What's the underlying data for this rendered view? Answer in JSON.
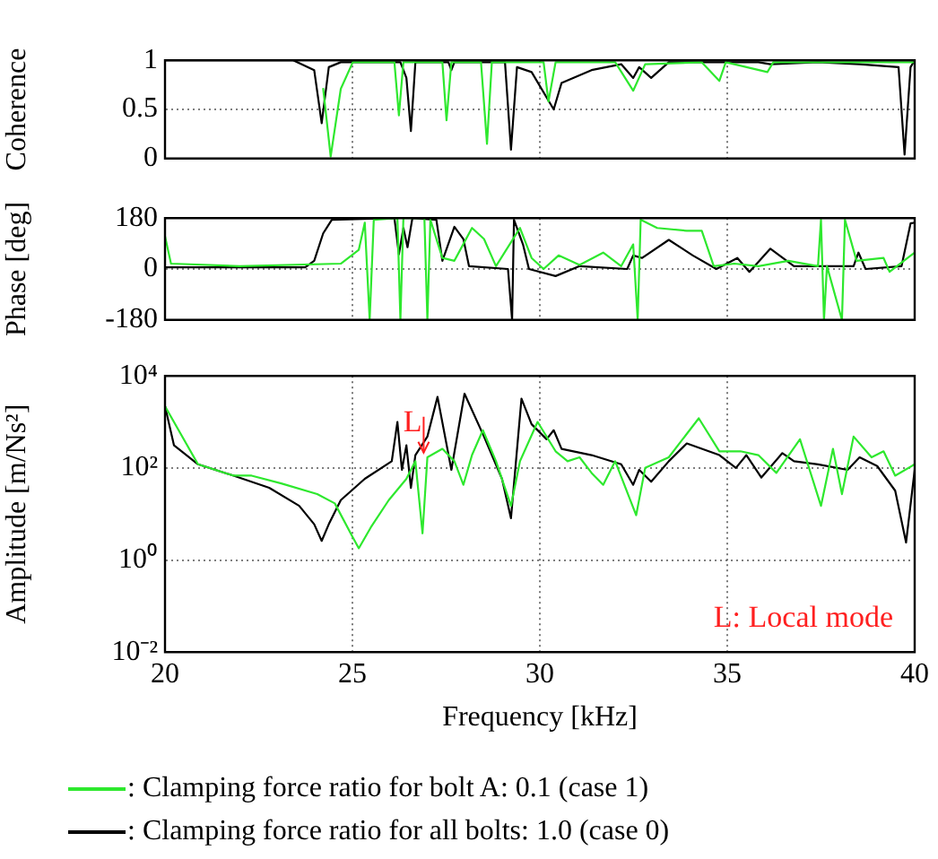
{
  "chart_data": [
    {
      "type": "line",
      "ylabel": "Coherence",
      "xlim": [
        20,
        40
      ],
      "xticks": [
        20,
        25,
        30,
        35,
        40
      ],
      "ylim": [
        0,
        1
      ],
      "yticks": [
        0,
        0.5,
        1
      ],
      "grid": true,
      "tick_labels": "y",
      "series": [
        {
          "color": "#2ee82e",
          "x": [
            24.22,
            24.42,
            24.69,
            25.01,
            26.12,
            26.24,
            26.36,
            27.4,
            27.51,
            27.64,
            28.43,
            28.59,
            28.72,
            30.1,
            30.23,
            30.42,
            32.01,
            32.49,
            32.81,
            34.32,
            34.79,
            34.96,
            36.07,
            36.23,
            39.97,
            40
          ],
          "values": [
            0.71,
            0.02,
            0.71,
            0.98,
            0.98,
            0.44,
            0.98,
            0.98,
            0.39,
            0.98,
            0.98,
            0.15,
            0.98,
            0.98,
            0.58,
            0.98,
            0.98,
            0.69,
            0.96,
            0.98,
            0.79,
            0.98,
            0.88,
            0.98,
            0.98,
            1
          ]
        },
        {
          "color": "#000000",
          "x": [
            20,
            23.42,
            23.98,
            24.18,
            24.37,
            24.69,
            26.28,
            26.44,
            26.56,
            26.68,
            27.56,
            27.64,
            27.72,
            29.07,
            29.23,
            29.39,
            29.78,
            30.37,
            30.58,
            31.38,
            32.17,
            32.49,
            32.65,
            32.97,
            33.44,
            35.83,
            36.15,
            37.42,
            38.53,
            39.57,
            39.73,
            39.89,
            40
          ],
          "values": [
            1,
            1,
            0.9,
            0.36,
            0.93,
            0.98,
            0.98,
            0.82,
            0.28,
            0.98,
            0.98,
            0.9,
            0.98,
            0.98,
            0.09,
            0.93,
            0.88,
            0.5,
            0.77,
            0.9,
            0.96,
            0.82,
            0.93,
            0.82,
            0.98,
            0.98,
            0.96,
            0.98,
            0.96,
            0.93,
            0.04,
            0.93,
            1
          ]
        }
      ]
    },
    {
      "type": "line",
      "ylabel": "Phase [deg]",
      "xlim": [
        20,
        40
      ],
      "xticks": [
        20,
        25,
        30,
        35,
        40
      ],
      "ylim": [
        -180,
        180
      ],
      "yticks": [
        -180,
        0,
        180
      ],
      "grid": true,
      "tick_labels": "y",
      "series": [
        {
          "color": "#2ee82e",
          "x": [
            20,
            20.16,
            21.99,
            24.69,
            25.17,
            25.33,
            25.46,
            25.57,
            26.2,
            26.28,
            26.36,
            26.92,
            27.0,
            27.08,
            27.4,
            27.72,
            28.19,
            28.51,
            28.83,
            29.47,
            29.78,
            30.1,
            30.5,
            31.06,
            31.69,
            32.17,
            32.49,
            32.61,
            32.69,
            33.13,
            33.92,
            34.32,
            34.64,
            35.19,
            35.83,
            36.63,
            37.42,
            37.5,
            37.58,
            37.66,
            38.06,
            38.14,
            38.45,
            39.17,
            39.33,
            40
          ],
          "values": [
            116,
            19,
            10,
            19,
            68,
            164,
            -180,
            174,
            180,
            -180,
            180,
            180,
            -180,
            174,
            39,
            29,
            145,
            106,
            10,
            145,
            39,
            0,
            48,
            14,
            58,
            10,
            87,
            -180,
            174,
            145,
            135,
            135,
            10,
            19,
            10,
            29,
            10,
            174,
            -180,
            10,
            -180,
            174,
            29,
            39,
            -10,
            58
          ]
        },
        {
          "color": "#000000",
          "x": [
            20,
            23.74,
            23.98,
            24.22,
            24.45,
            26.12,
            26.24,
            26.36,
            26.47,
            26.6,
            27.24,
            27.4,
            27.72,
            27.96,
            28.11,
            29.15,
            29.26,
            29.31,
            29.55,
            29.71,
            30.42,
            31.06,
            32.33,
            32.49,
            32.73,
            33.44,
            34.08,
            34.71,
            35.27,
            35.59,
            36.15,
            36.78,
            38.37,
            38.5,
            38.69,
            39.65,
            39.89,
            40
          ],
          "values": [
            6,
            6,
            29,
            126,
            174,
            180,
            52,
            145,
            77,
            180,
            174,
            29,
            149,
            106,
            10,
            0,
            -180,
            174,
            87,
            0,
            -25,
            10,
            0,
            48,
            39,
            103,
            48,
            0,
            39,
            -10,
            72,
            10,
            10,
            58,
            0,
            10,
            161,
            164
          ]
        }
      ]
    },
    {
      "type": "line",
      "xlabel": "Frequency [kHz]",
      "ylabel": "Amplitude [m/Ns²]",
      "log": "y",
      "xlim": [
        20,
        40
      ],
      "xticks": [
        20,
        25,
        30,
        35,
        40
      ],
      "ylim": [
        0.01,
        10000
      ],
      "yticks": [
        {
          "value": 0.01,
          "label": "10⁻²"
        },
        {
          "value": 1,
          "label": "10⁰"
        },
        {
          "value": 100,
          "label": "10²"
        },
        {
          "value": 10000,
          "label": "10⁴"
        }
      ],
      "grid": true,
      "legend": "bottom",
      "annotations": [
        {
          "text": "L",
          "x": 26.9,
          "y": 180
        },
        "L: Local mode"
      ],
      "series": [
        {
          "name": ": Clamping force ratio for bolt A: 0.1 (case 1)",
          "color": "#2ee82e",
          "x": [
            20,
            20.88,
            21.83,
            22.31,
            23.1,
            24.06,
            24.53,
            25.0,
            25.17,
            25.49,
            25.97,
            26.44,
            26.68,
            26.87,
            27.0,
            27.4,
            27.72,
            27.96,
            28.19,
            28.48,
            28.83,
            29.23,
            29.47,
            29.94,
            30.42,
            30.74,
            31.06,
            31.38,
            31.69,
            32.01,
            32.57,
            32.81,
            33.44,
            34.24,
            34.79,
            35.35,
            35.83,
            36.31,
            36.94,
            37.5,
            37.82,
            38.06,
            38.37,
            38.85,
            39.17,
            39.48,
            40
          ],
          "values": [
            2200,
            120,
            68,
            68,
            46,
            27,
            17,
            3.2,
            1.8,
            5.1,
            20,
            58,
            140,
            3.8,
            170,
            260,
            140,
            43,
            190,
            660,
            140,
            15,
            140,
            1000,
            230,
            140,
            170,
            78,
            43,
            140,
            9.4,
            100,
            170,
            1200,
            230,
            230,
            190,
            78,
            420,
            15,
            260,
            27,
            480,
            170,
            230,
            68,
            120
          ]
        },
        {
          "name": ": Clamping force ratio for all bolts: 1.0 (case 0)",
          "color": "#000000",
          "x": [
            20,
            20.24,
            20.88,
            21.83,
            22.78,
            23.58,
            23.98,
            24.18,
            24.37,
            24.69,
            25.33,
            26.05,
            26.2,
            26.32,
            26.44,
            26.56,
            26.68,
            27.0,
            27.27,
            27.64,
            27.99,
            28.51,
            28.99,
            29.23,
            29.51,
            29.78,
            30.18,
            30.37,
            30.58,
            31.38,
            32.17,
            32.49,
            32.65,
            32.97,
            33.44,
            33.92,
            34.79,
            35.23,
            35.51,
            35.91,
            36.47,
            36.78,
            37.42,
            38.21,
            38.53,
            39.0,
            39.48,
            39.77,
            40
          ],
          "values": [
            2200,
            310,
            120,
            68,
            37,
            15,
            6,
            2.6,
            6,
            20,
            58,
            140,
            1000,
            91,
            310,
            37,
            190,
            480,
            3500,
            91,
            4100,
            480,
            58,
            8.1,
            3200,
            890,
            420,
            660,
            260,
            190,
            120,
            43,
            91,
            50,
            140,
            340,
            190,
            100,
            190,
            62,
            210,
            140,
            120,
            91,
            170,
            110,
            32,
            2.4,
            91
          ]
        }
      ]
    }
  ]
}
